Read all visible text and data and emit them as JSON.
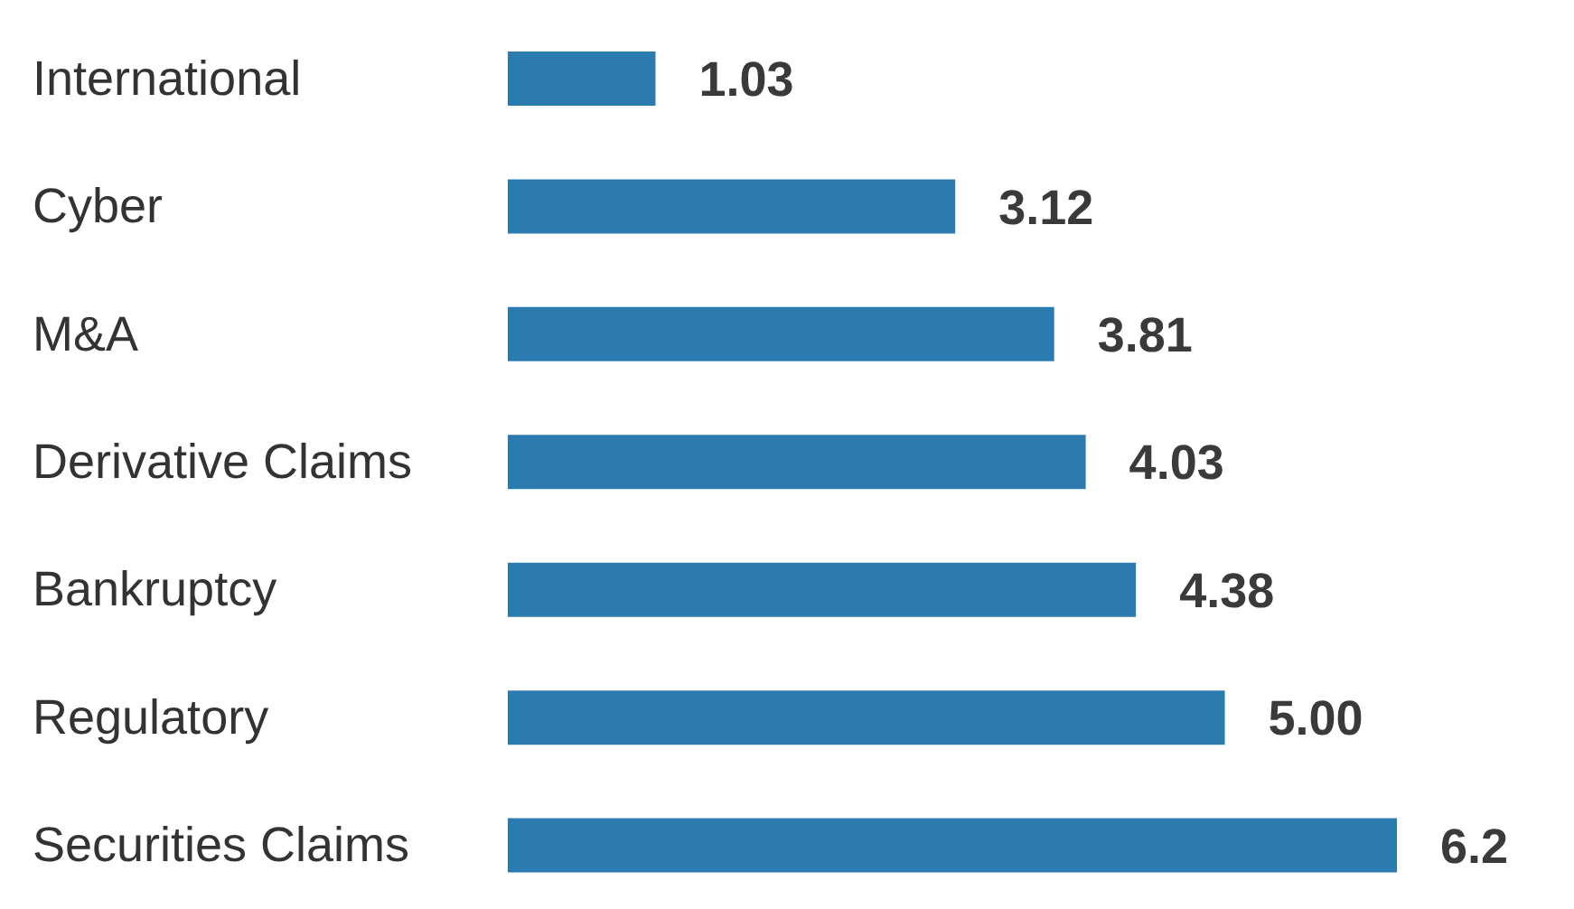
{
  "chart_data": {
    "type": "bar",
    "orientation": "horizontal",
    "categories": [
      "International",
      "Cyber",
      "M&A",
      "Derivative Claims",
      "Bankruptcy",
      "Regulatory",
      "Securities Claims"
    ],
    "values": [
      1.03,
      3.12,
      3.81,
      4.03,
      4.38,
      5.0,
      6.2
    ],
    "value_labels": [
      "1.03",
      "3.12",
      "3.81",
      "4.03",
      "4.38",
      "5.00",
      "6.2"
    ],
    "color": "#2b7bb0",
    "tick_labels": "y"
  }
}
